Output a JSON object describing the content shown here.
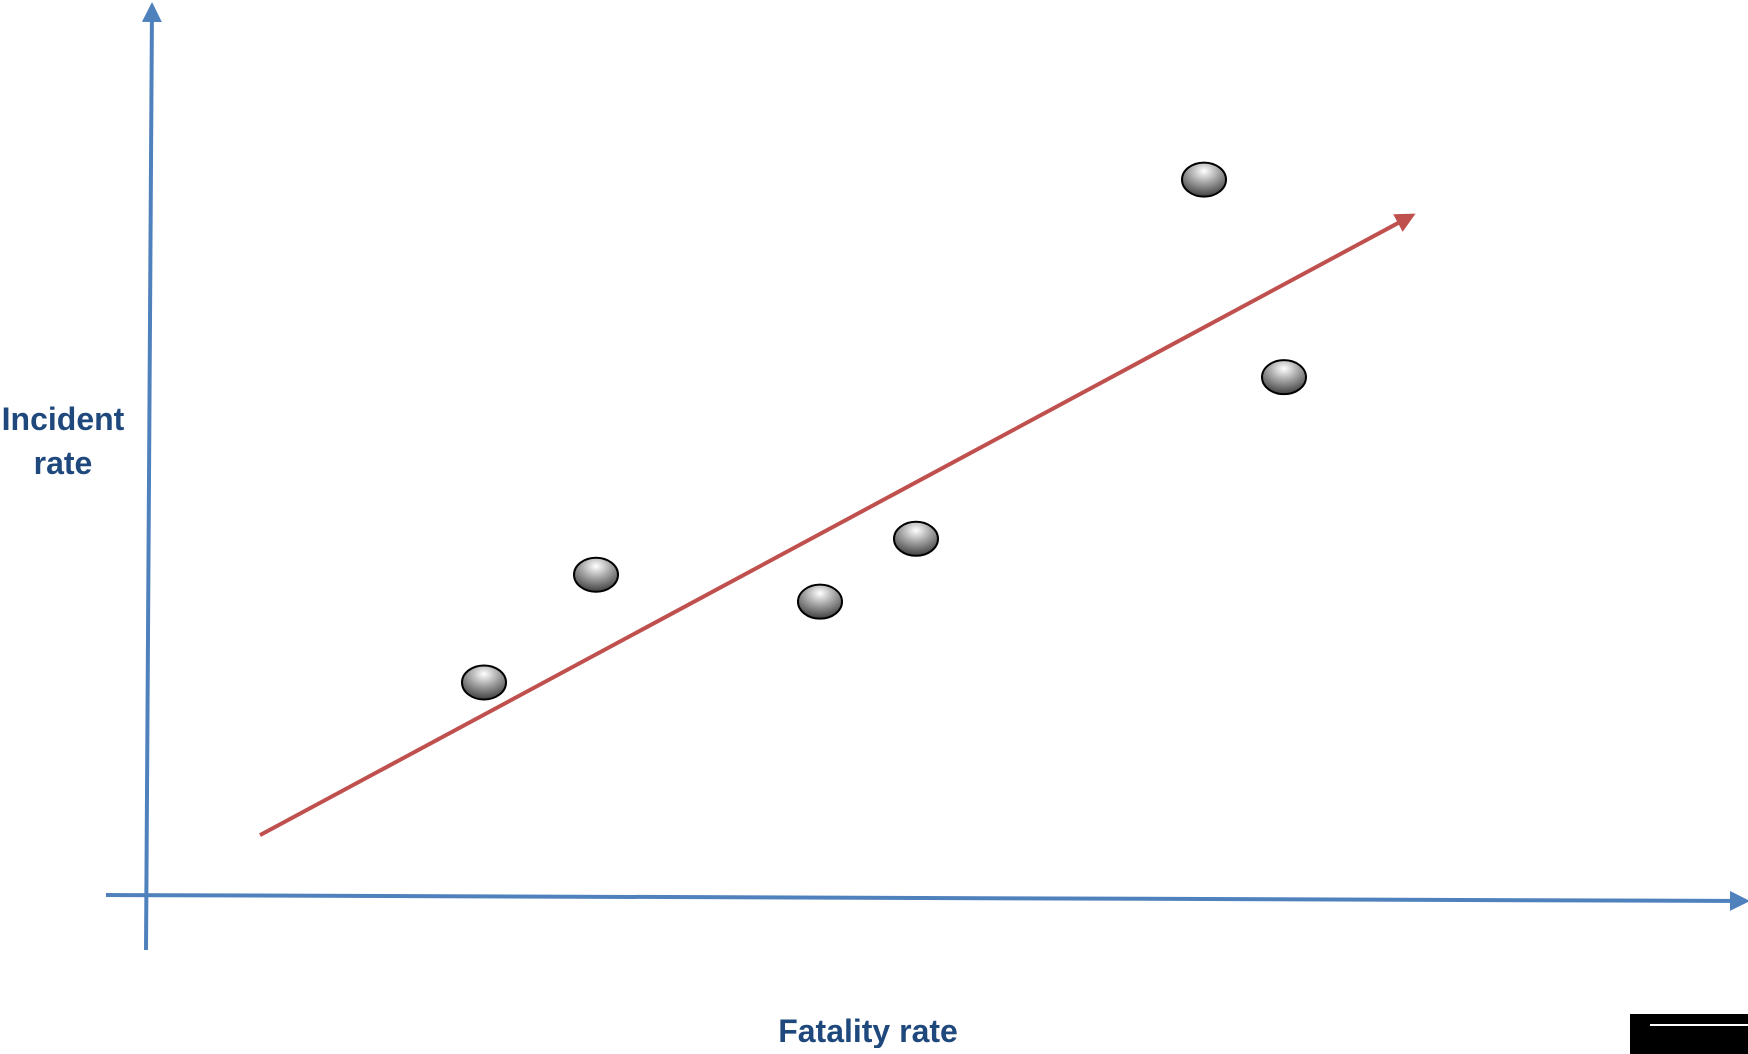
{
  "chart_data": {
    "type": "scatter",
    "title": "",
    "xlabel": "Fatality rate",
    "ylabel_lines": [
      "Incident",
      "rate"
    ],
    "xlim": [
      0,
      10
    ],
    "ylim": [
      0,
      10
    ],
    "grid": false,
    "legend": "none",
    "tick_labels": false,
    "points": [
      {
        "x": 2.1,
        "y": 2.4
      },
      {
        "x": 2.8,
        "y": 3.6
      },
      {
        "x": 4.2,
        "y": 3.3
      },
      {
        "x": 4.8,
        "y": 4.0
      },
      {
        "x": 6.6,
        "y": 8.0
      },
      {
        "x": 7.1,
        "y": 5.8
      }
    ],
    "trend_line": {
      "from": [
        0.7,
        0.7
      ],
      "to": [
        7.9,
        7.6
      ]
    },
    "colors": {
      "axis": "#4f81bd",
      "trend": "#c0504d",
      "marker": "#808080",
      "marker_stroke": "#000000",
      "label": "#1f497d"
    }
  }
}
